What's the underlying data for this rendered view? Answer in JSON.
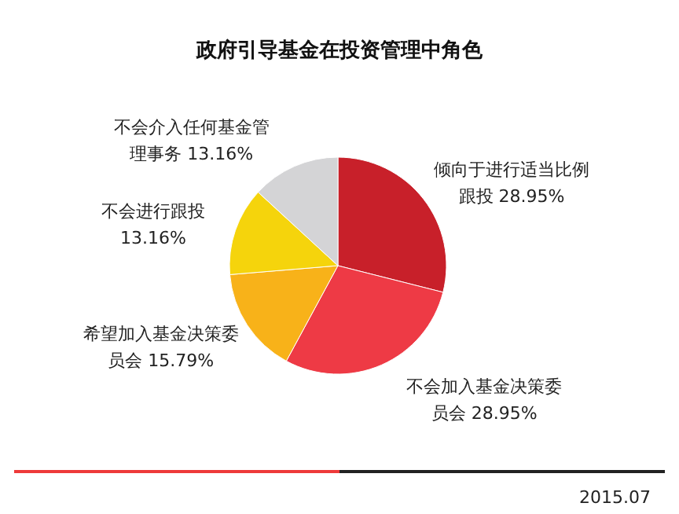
{
  "chart_data": {
    "type": "pie",
    "title": "政府引导基金在投资管理中角色",
    "categories": [
      "倾向于进行适当比例跟投",
      "不会加入基金决策委员会",
      "希望加入基金决策委员会",
      "不会进行跟投",
      "不会介入任何基金管理事务"
    ],
    "values": [
      28.95,
      28.95,
      15.79,
      13.16,
      13.16
    ],
    "colors": [
      "#c8202a",
      "#ee3a45",
      "#f8b219",
      "#f5d40c",
      "#d4d4d6"
    ],
    "value_labels": [
      "28.95%",
      "28.95%",
      "15.79%",
      "13.16%",
      "13.16%"
    ],
    "annotations": [
      "2015.07"
    ]
  }
}
